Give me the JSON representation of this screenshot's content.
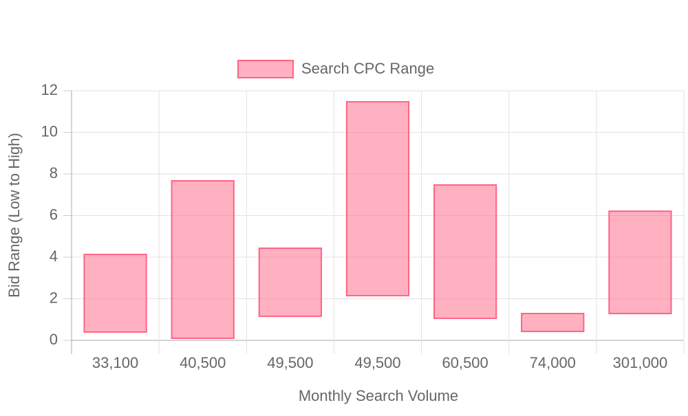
{
  "chart_data": {
    "type": "floating-bar",
    "x_label": "Monthly Search Volume",
    "y_label": "Bid Range (Low to High)",
    "categories": [
      "33,100",
      "40,500",
      "49,500",
      "49,500",
      "60,500",
      "74,000",
      "301,000"
    ],
    "series": [
      {
        "name": "Search CPC Range",
        "color": "#ff6384",
        "values": [
          [
            0.4,
            4.13
          ],
          [
            0.1,
            7.67
          ],
          [
            1.16,
            4.43
          ],
          [
            2.15,
            11.47
          ],
          [
            1.06,
            7.47
          ],
          [
            0.43,
            1.29
          ],
          [
            1.29,
            6.21
          ]
        ]
      }
    ],
    "ylim": [
      0,
      12
    ],
    "yticks": [
      0,
      2,
      4,
      6,
      8,
      10,
      12
    ],
    "grid": true,
    "legend": "top"
  }
}
